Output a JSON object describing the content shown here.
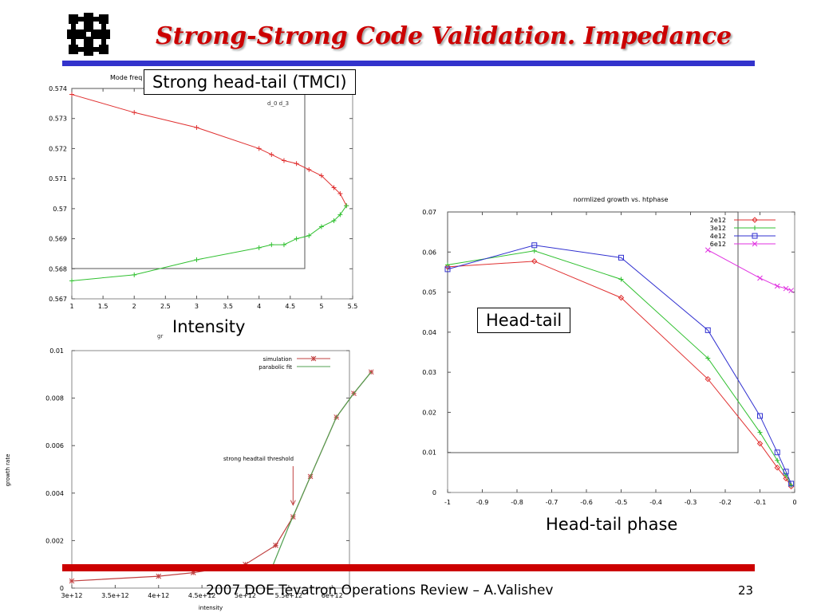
{
  "slide": {
    "title": "Strong-Strong Code Validation. Impedance",
    "footer": "2007 DOE Tevatron Operations Review – A.Valishev",
    "page_number": "23",
    "logo_icon": "fermilab-logo-icon",
    "colors": {
      "title": "#cc0000",
      "title_rule": "#3333cc",
      "footer_rule": "#cc0000"
    }
  },
  "annotations": {
    "tmci_box": "Strong head-tail (TMCI)",
    "intensity_label": "Intensity",
    "headtail_box": "Head-tail",
    "phase_label": "Head-tail phase"
  },
  "chart_data": [
    {
      "type": "line",
      "title": "Mode freq",
      "legend_fragment": "d_0 d_3",
      "xlim": [
        1,
        5.5
      ],
      "ylim": [
        0.567,
        0.574
      ],
      "x_ticks": [
        "1",
        "1.5",
        "2",
        "2.5",
        "3",
        "3.5",
        "4",
        "4.5",
        "5",
        "5.5"
      ],
      "y_ticks": [
        "0.567",
        "0.568",
        "0.569",
        "0.57",
        "0.571",
        "0.572",
        "0.573",
        "0.574"
      ],
      "series": [
        {
          "color": "#e03030",
          "x": [
            1,
            2,
            3,
            4,
            4.2,
            4.4,
            4.6,
            4.8,
            5,
            5.2,
            5.3,
            5.4
          ],
          "y": [
            0.5738,
            0.5732,
            0.5727,
            0.572,
            0.5718,
            0.5716,
            0.5715,
            0.5713,
            0.5711,
            0.5707,
            0.5705,
            0.5701
          ]
        },
        {
          "color": "#30c030",
          "x": [
            1,
            2,
            3,
            4,
            4.2,
            4.4,
            4.6,
            4.8,
            5,
            5.2,
            5.3,
            5.4
          ],
          "y": [
            0.5676,
            0.5678,
            0.5683,
            0.5687,
            0.5688,
            0.5688,
            0.569,
            0.5691,
            0.5694,
            0.5696,
            0.5698,
            0.5701
          ]
        }
      ]
    },
    {
      "type": "line",
      "ylabel": "growth rate",
      "xlabel": "intensity",
      "xlim": [
        3000000000000.0,
        6200000000000.0
      ],
      "ylim": [
        0,
        0.01
      ],
      "x_ticks": [
        {
          "value": 3000000000000.0,
          "label": "3e+12"
        },
        {
          "value": 3500000000000.0,
          "label": "3.5e+12"
        },
        {
          "value": 4000000000000.0,
          "label": "4e+12"
        },
        {
          "value": 4500000000000.0,
          "label": "4.5e+12"
        },
        {
          "value": 5000000000000.0,
          "label": "5e+12"
        },
        {
          "value": 5500000000000.0,
          "label": "5.5e+12"
        },
        {
          "value": 6000000000000.0,
          "label": "6e+12"
        }
      ],
      "y_ticks": [
        {
          "value": 0,
          "label": "0"
        },
        {
          "value": 0.002,
          "label": "0.002"
        },
        {
          "value": 0.004,
          "label": "0.004"
        },
        {
          "value": 0.006,
          "label": "0.006"
        },
        {
          "value": 0.008,
          "label": "0.008"
        },
        {
          "value": 0.01,
          "label": "0.01"
        }
      ],
      "annotation": {
        "text": "strong headtail threshold",
        "x": 5550000000000.0,
        "y": 0.0035
      },
      "series": [
        {
          "name": "simulation",
          "color": "#c04040",
          "marker": "star",
          "x": [
            3000000000000.0,
            4000000000000.0,
            4400000000000.0,
            5000000000000.0,
            5350000000000.0,
            5550000000000.0,
            5750000000000.0,
            6050000000000.0,
            6250000000000.0,
            6450000000000.0
          ],
          "y": [
            0.0003,
            0.0005,
            0.00065,
            0.001,
            0.0018,
            0.003,
            0.0047,
            0.0072,
            0.0082,
            0.0091
          ]
        },
        {
          "name": "parabolic fit",
          "color": "#50a050",
          "marker": "none",
          "x": [
            5300000000000.0,
            5500000000000.0,
            5750000000000.0,
            6050000000000.0,
            6250000000000.0,
            6450000000000.0
          ],
          "y": [
            0.0008,
            0.0026,
            0.0047,
            0.0072,
            0.0082,
            0.0091
          ]
        }
      ]
    },
    {
      "type": "line",
      "title": "normlized growth vs. htphase",
      "xlim": [
        -1,
        0
      ],
      "ylim": [
        0,
        0.07
      ],
      "x_ticks": [
        "-1",
        "-0.9",
        "-0.8",
        "-0.7",
        "-0.6",
        "-0.5",
        "-0.4",
        "-0.3",
        "-0.2",
        "-0.1",
        "0"
      ],
      "y_ticks": [
        "0",
        "0.01",
        "0.02",
        "0.03",
        "0.04",
        "0.05",
        "0.06",
        "0.07"
      ],
      "legend_position": "top-right",
      "series": [
        {
          "name": "2e12",
          "color": "#e03030",
          "marker": "diamond",
          "x": [
            -1,
            -0.75,
            -0.5,
            -0.25,
            -0.1,
            -0.05,
            -0.025,
            -0.01
          ],
          "y": [
            0.0563,
            0.0577,
            0.0486,
            0.0283,
            0.0122,
            0.0062,
            0.0035,
            0.0015
          ]
        },
        {
          "name": "3e12",
          "color": "#30c030",
          "marker": "plus",
          "x": [
            -1,
            -0.75,
            -0.5,
            -0.25,
            -0.1,
            -0.05,
            -0.025,
            -0.01
          ],
          "y": [
            0.0568,
            0.0603,
            0.0532,
            0.0335,
            0.015,
            0.008,
            0.0043,
            0.0018
          ]
        },
        {
          "name": "4e12",
          "color": "#3030d0",
          "marker": "square",
          "x": [
            -1,
            -0.75,
            -0.5,
            -0.25,
            -0.1,
            -0.05,
            -0.025,
            -0.01
          ],
          "y": [
            0.0557,
            0.0617,
            0.0586,
            0.0405,
            0.0191,
            0.01,
            0.0052,
            0.0022
          ]
        },
        {
          "name": "6e12",
          "color": "#e030e0",
          "marker": "x",
          "x": [
            -0.25,
            -0.1,
            -0.05,
            -0.025,
            -0.01
          ],
          "y": [
            0.0605,
            0.0535,
            0.0515,
            0.0509,
            0.0504
          ]
        }
      ]
    }
  ]
}
